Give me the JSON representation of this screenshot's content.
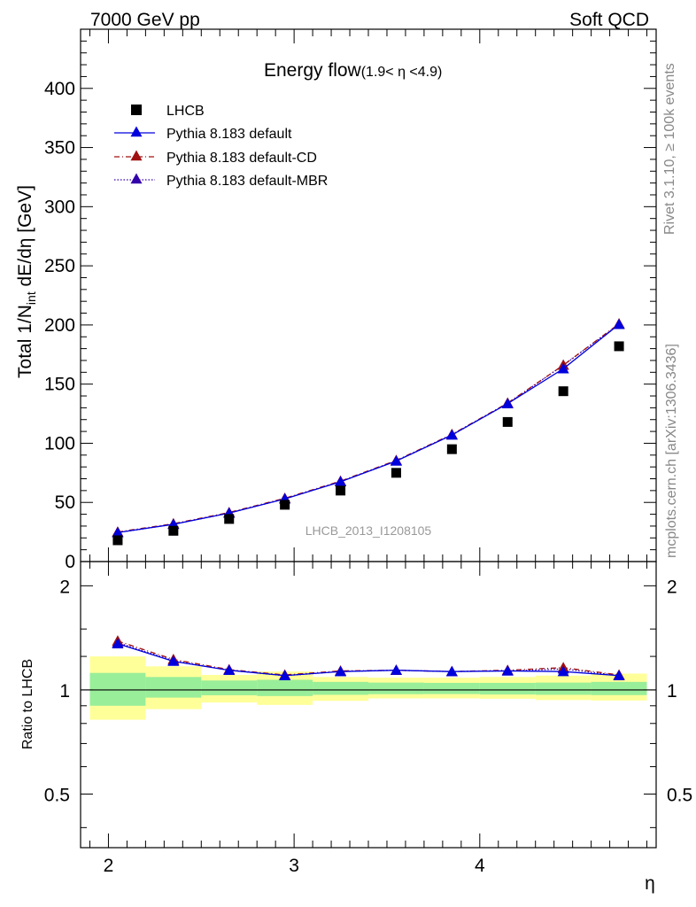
{
  "header": {
    "left": "7000 GeV pp",
    "right": "Soft QCD"
  },
  "side_labels": {
    "rivet": "Rivet 3.1.10, ≥ 100k events",
    "mcplots": "mcplots.cern.ch [arXiv:1306.3436]"
  },
  "chart_data": {
    "type": "scatter",
    "title": "Energy flow",
    "title_sub": "(1.9< η <4.9)",
    "watermark": "LHCB_2013_I1208105",
    "xlabel": "η",
    "ylabel": "Total 1/N",
    "ylabel_sub": "int",
    "ylabel_tail": " dE/dη [GeV]",
    "ratio_ylabel": "Ratio to LHCB",
    "xlim": [
      1.85,
      4.95
    ],
    "ylim": [
      0,
      450
    ],
    "ratio_ylim": [
      0.35,
      2.35
    ],
    "x_ticks": [
      2,
      3,
      4
    ],
    "x_tick_labels": [
      "2",
      "3",
      "4"
    ],
    "y_ticks": [
      0,
      50,
      100,
      150,
      200,
      250,
      300,
      350,
      400
    ],
    "y_tick_labels": [
      "0",
      "50",
      "100",
      "150",
      "200",
      "250",
      "300",
      "350",
      "400"
    ],
    "ratio_ticks": [
      0.5,
      1,
      2
    ],
    "ratio_tick_labels": [
      "0.5",
      "1",
      "2"
    ],
    "bin_edges": [
      1.9,
      2.2,
      2.5,
      2.8,
      3.1,
      3.4,
      3.7,
      4.0,
      4.3,
      4.6,
      4.9
    ],
    "x": [
      2.05,
      2.35,
      2.65,
      2.95,
      3.25,
      3.55,
      3.85,
      4.15,
      4.45,
      4.75
    ],
    "band_inner": [
      [
        0.9,
        1.12
      ],
      [
        0.95,
        1.09
      ],
      [
        0.965,
        1.065
      ],
      [
        0.96,
        1.07
      ],
      [
        0.968,
        1.055
      ],
      [
        0.972,
        1.05
      ],
      [
        0.973,
        1.048
      ],
      [
        0.97,
        1.048
      ],
      [
        0.968,
        1.05
      ],
      [
        0.966,
        1.055
      ]
    ],
    "band_outer": [
      [
        0.82,
        1.25
      ],
      [
        0.88,
        1.17
      ],
      [
        0.92,
        1.105
      ],
      [
        0.905,
        1.13
      ],
      [
        0.93,
        1.09
      ],
      [
        0.945,
        1.085
      ],
      [
        0.945,
        1.085
      ],
      [
        0.943,
        1.09
      ],
      [
        0.935,
        1.1
      ],
      [
        0.932,
        1.115
      ]
    ],
    "series": [
      {
        "name": "LHCB",
        "marker": "square",
        "color": "#000000",
        "values": [
          18,
          26,
          36,
          48,
          60,
          75,
          95,
          118,
          144,
          182
        ]
      },
      {
        "name": "Pythia 8.183 default",
        "marker": "triangle",
        "color": "#0000dd",
        "dash": "",
        "values": [
          24.5,
          31.5,
          41,
          53,
          67.5,
          85,
          107,
          133.5,
          163,
          200.5
        ],
        "ratio": [
          1.36,
          1.21,
          1.14,
          1.1,
          1.13,
          1.14,
          1.13,
          1.135,
          1.13,
          1.1
        ]
      },
      {
        "name": "Pythia 8.183 default-CD",
        "marker": "triangle",
        "color": "#a01010",
        "dash": "6,3,1,3",
        "values": [
          25,
          32,
          41.5,
          53.5,
          68,
          85.5,
          107.5,
          134,
          166,
          201
        ],
        "ratio": [
          1.385,
          1.225,
          1.145,
          1.105,
          1.135,
          1.14,
          1.13,
          1.14,
          1.16,
          1.105
        ]
      },
      {
        "name": "Pythia 8.183 default-MBR",
        "marker": "triangle",
        "color": "#3300aa",
        "dash": "1.5,2",
        "values": [
          24.5,
          31.5,
          41,
          53,
          67.5,
          85,
          107,
          133.5,
          166,
          200.5
        ],
        "ratio": [
          1.37,
          1.215,
          1.14,
          1.1,
          1.13,
          1.14,
          1.13,
          1.135,
          1.15,
          1.1
        ]
      }
    ],
    "colors": {
      "band_inner": "#99ee99",
      "band_outer": "#ffff99",
      "axis": "#000000",
      "muted": "#888888"
    }
  }
}
